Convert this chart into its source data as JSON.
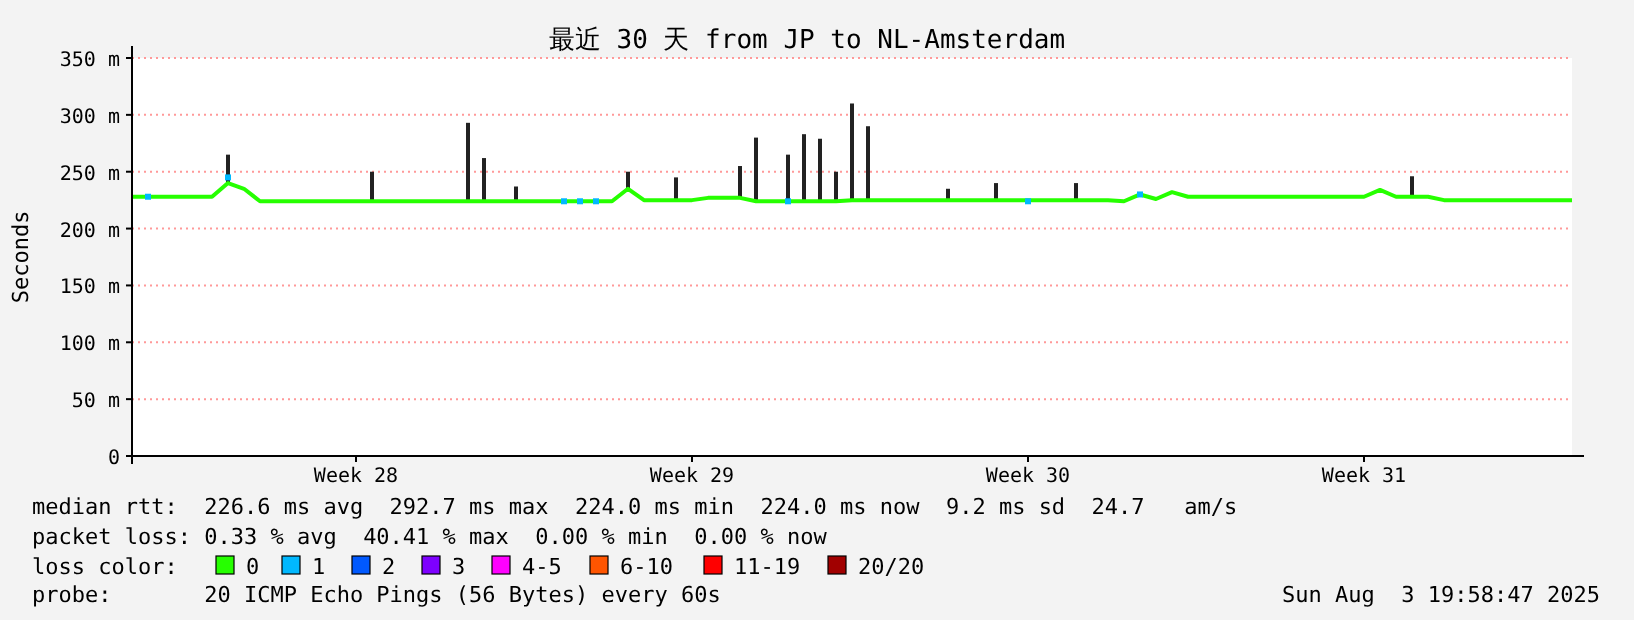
{
  "chart_data": {
    "type": "line",
    "title": "最近 30 天 from JP to NL-Amsterdam",
    "ylabel": "Seconds",
    "legend_title": "loss color:",
    "legend": "bottom",
    "grid": "y",
    "categories": [
      null,
      null,
      null,
      null,
      null,
      null,
      null,
      null,
      null,
      null,
      null,
      null,
      null,
      null,
      "Week 28",
      null,
      null,
      null,
      null,
      null,
      null,
      null,
      null,
      null,
      null,
      null,
      null,
      null,
      null,
      null,
      null,
      null,
      null,
      null,
      null,
      "Week 29",
      null,
      null,
      null,
      null,
      null,
      null,
      null,
      null,
      null,
      null,
      null,
      null,
      null,
      null,
      null,
      null,
      null,
      null,
      null,
      null,
      "Week 30",
      null,
      null,
      null,
      null,
      null,
      null,
      null,
      null,
      null,
      null,
      null,
      null,
      null,
      null,
      null,
      null,
      null,
      null,
      null,
      null,
      "Week 31",
      null,
      null,
      null,
      null,
      null,
      null,
      null,
      null,
      null,
      null,
      null,
      null,
      null
    ],
    "ylim": [
      0,
      350
    ],
    "yticks": [
      {
        "value": 0,
        "label": "0"
      },
      {
        "value": 50,
        "label": "50 m"
      },
      {
        "value": 100,
        "label": "100 m"
      },
      {
        "value": 150,
        "label": "150 m"
      },
      {
        "value": 200,
        "label": "200 m"
      },
      {
        "value": 250,
        "label": "250 m"
      },
      {
        "value": 300,
        "label": "300 m"
      },
      {
        "value": 350,
        "label": "350 m"
      }
    ],
    "series": [
      {
        "type": "bar",
        "color": "#222222",
        "base": [
          null,
          null,
          null,
          null,
          null,
          null,
          240,
          null,
          null,
          null,
          null,
          null,
          null,
          null,
          null,
          224,
          null,
          null,
          null,
          null,
          null,
          224,
          224,
          null,
          224,
          null,
          null,
          null,
          null,
          null,
          null,
          235,
          null,
          null,
          225,
          null,
          null,
          null,
          227,
          224,
          null,
          224,
          224,
          224,
          224,
          225,
          225,
          null,
          null,
          null,
          null,
          225,
          null,
          null,
          225,
          null,
          null,
          null,
          null,
          225,
          null,
          null,
          null,
          null,
          null,
          null,
          null,
          null,
          null,
          null,
          null,
          null,
          null,
          null,
          null,
          null,
          null,
          null,
          null,
          null,
          228,
          null,
          null,
          null,
          null,
          null,
          null,
          null,
          null,
          null,
          null
        ],
        "values": [
          null,
          null,
          null,
          null,
          null,
          null,
          25,
          null,
          null,
          null,
          null,
          null,
          null,
          null,
          null,
          26,
          null,
          null,
          null,
          null,
          null,
          69,
          38,
          null,
          13,
          null,
          null,
          null,
          null,
          null,
          null,
          15,
          null,
          null,
          20,
          null,
          null,
          null,
          28,
          56,
          null,
          41,
          59,
          55,
          26,
          85,
          65,
          null,
          null,
          null,
          null,
          10,
          null,
          null,
          15,
          null,
          null,
          null,
          null,
          15,
          null,
          null,
          null,
          null,
          null,
          null,
          null,
          null,
          null,
          null,
          null,
          null,
          null,
          null,
          null,
          null,
          null,
          null,
          null,
          null,
          18,
          null,
          null,
          null,
          null,
          null,
          null,
          null,
          null,
          null,
          null
        ]
      },
      {
        "name": "0",
        "color": "#26ff00",
        "values": [
          228,
          228,
          228,
          228,
          228,
          228,
          240,
          235,
          224,
          224,
          224,
          224,
          224,
          224,
          224,
          224,
          224,
          224,
          224,
          224,
          224,
          224,
          224,
          224,
          224,
          224,
          224,
          224,
          224,
          224,
          224,
          235,
          225,
          225,
          225,
          225,
          227,
          227,
          227,
          224,
          224,
          224,
          224,
          224,
          224,
          225,
          225,
          225,
          225,
          225,
          225,
          225,
          225,
          225,
          225,
          225,
          225,
          225,
          225,
          225,
          225,
          225,
          224,
          230,
          226,
          232,
          228,
          228,
          228,
          228,
          228,
          228,
          228,
          228,
          228,
          228,
          228,
          228,
          234,
          228,
          228,
          228,
          225,
          225,
          225,
          225,
          225,
          225,
          225,
          225,
          225
        ]
      },
      {
        "name": "1",
        "type": "scatter",
        "marker": "square",
        "color": "#00b8ff",
        "values": [
          null,
          228,
          null,
          null,
          null,
          null,
          245,
          null,
          null,
          null,
          null,
          null,
          null,
          null,
          null,
          null,
          null,
          null,
          null,
          null,
          null,
          null,
          null,
          null,
          null,
          null,
          null,
          224,
          224,
          224,
          null,
          null,
          null,
          null,
          null,
          null,
          null,
          null,
          null,
          null,
          null,
          224,
          null,
          null,
          null,
          null,
          null,
          null,
          null,
          null,
          null,
          null,
          null,
          null,
          null,
          null,
          224,
          null,
          null,
          null,
          null,
          null,
          null,
          230,
          null,
          null,
          null,
          null,
          null,
          null,
          null,
          null,
          null,
          null,
          null,
          null,
          null,
          null,
          null,
          null,
          null,
          null,
          null,
          null,
          null,
          null,
          null,
          null,
          null,
          null,
          null
        ]
      },
      {
        "name": "2",
        "type": "scatter",
        "marker": "square",
        "color": "#0059ff",
        "values": [
          null,
          null,
          null,
          null,
          null,
          null,
          null,
          null,
          null,
          null,
          null,
          null,
          null,
          null,
          null,
          null,
          null,
          null,
          null,
          null,
          null,
          null,
          null,
          null,
          null,
          null,
          null,
          null,
          null,
          null,
          null,
          null,
          null,
          null,
          null,
          null,
          null,
          null,
          null,
          null,
          null,
          null,
          null,
          null,
          null,
          null,
          null,
          null,
          null,
          null,
          null,
          null,
          null,
          null,
          null,
          null,
          null,
          null,
          null,
          null,
          null,
          null,
          null,
          null,
          null,
          null,
          null,
          null,
          null,
          null,
          null,
          null,
          null,
          null,
          null,
          null,
          null,
          null,
          null,
          null,
          null,
          null,
          null,
          null,
          null,
          null,
          null,
          null,
          null,
          null,
          null
        ]
      },
      {
        "name": "3",
        "type": "scatter",
        "marker": "square",
        "color": "#7e00ff",
        "values": [
          null,
          null,
          null,
          null,
          null,
          null,
          null,
          null,
          null,
          null,
          null,
          null,
          null,
          null,
          null,
          null,
          null,
          null,
          null,
          null,
          null,
          null,
          null,
          null,
          null,
          null,
          null,
          null,
          null,
          null,
          null,
          null,
          null,
          null,
          null,
          null,
          null,
          null,
          null,
          null,
          null,
          null,
          null,
          null,
          null,
          null,
          null,
          null,
          null,
          null,
          null,
          null,
          null,
          null,
          null,
          null,
          null,
          null,
          null,
          null,
          null,
          null,
          null,
          null,
          null,
          null,
          null,
          null,
          null,
          null,
          null,
          null,
          null,
          null,
          null,
          null,
          null,
          null,
          null,
          null,
          null,
          null,
          null,
          null,
          null,
          null,
          null,
          null,
          null,
          null,
          null
        ]
      },
      {
        "name": "4-5",
        "type": "scatter",
        "marker": "square",
        "color": "#ff00ff",
        "values": [
          null,
          null,
          null,
          null,
          null,
          null,
          null,
          null,
          null,
          null,
          null,
          null,
          null,
          null,
          null,
          null,
          null,
          null,
          null,
          null,
          null,
          null,
          null,
          null,
          null,
          null,
          null,
          null,
          null,
          null,
          null,
          null,
          null,
          null,
          null,
          null,
          null,
          null,
          null,
          null,
          null,
          null,
          null,
          null,
          null,
          null,
          null,
          null,
          null,
          null,
          null,
          null,
          null,
          null,
          null,
          null,
          null,
          null,
          null,
          null,
          null,
          null,
          null,
          null,
          null,
          null,
          null,
          null,
          null,
          null,
          null,
          null,
          null,
          null,
          null,
          null,
          null,
          null,
          null,
          null,
          null,
          null,
          null,
          null,
          null,
          null,
          null,
          null,
          null,
          null,
          null
        ]
      },
      {
        "name": "6-10",
        "type": "scatter",
        "marker": "square",
        "color": "#ff5500",
        "values": [
          null,
          null,
          null,
          null,
          null,
          null,
          null,
          null,
          null,
          null,
          null,
          null,
          null,
          null,
          null,
          null,
          null,
          null,
          null,
          null,
          null,
          null,
          null,
          null,
          null,
          null,
          null,
          null,
          null,
          null,
          null,
          null,
          null,
          null,
          null,
          null,
          null,
          null,
          null,
          null,
          null,
          null,
          null,
          null,
          null,
          null,
          null,
          null,
          null,
          null,
          null,
          null,
          null,
          null,
          null,
          null,
          null,
          null,
          null,
          null,
          null,
          null,
          null,
          null,
          null,
          null,
          null,
          null,
          null,
          null,
          null,
          null,
          null,
          null,
          null,
          null,
          null,
          null,
          null,
          null,
          null,
          null,
          null,
          null,
          null,
          null,
          null,
          null,
          null,
          null,
          null
        ]
      },
      {
        "name": "11-19",
        "type": "scatter",
        "marker": "square",
        "color": "#ff0000",
        "values": [
          null,
          null,
          null,
          null,
          null,
          null,
          null,
          null,
          null,
          null,
          null,
          null,
          null,
          null,
          null,
          null,
          null,
          null,
          null,
          null,
          null,
          null,
          null,
          null,
          null,
          null,
          null,
          null,
          null,
          null,
          null,
          null,
          null,
          null,
          null,
          null,
          null,
          null,
          null,
          null,
          null,
          null,
          null,
          null,
          null,
          null,
          null,
          null,
          null,
          null,
          null,
          null,
          null,
          null,
          null,
          null,
          null,
          null,
          null,
          null,
          null,
          null,
          null,
          null,
          null,
          null,
          null,
          null,
          null,
          null,
          null,
          null,
          null,
          null,
          null,
          null,
          null,
          null,
          null,
          null,
          null,
          null,
          null,
          null,
          null,
          null,
          null,
          null,
          null,
          null,
          null
        ]
      },
      {
        "name": "20/20",
        "type": "scatter",
        "marker": "square",
        "color": "#a10000",
        "values": [
          null,
          null,
          null,
          null,
          null,
          null,
          null,
          null,
          null,
          null,
          null,
          null,
          null,
          null,
          null,
          null,
          null,
          null,
          null,
          null,
          null,
          null,
          null,
          null,
          null,
          null,
          null,
          null,
          null,
          null,
          null,
          null,
          null,
          null,
          null,
          null,
          null,
          null,
          null,
          null,
          null,
          null,
          null,
          null,
          null,
          null,
          null,
          null,
          null,
          null,
          null,
          null,
          null,
          null,
          null,
          null,
          null,
          null,
          null,
          null,
          null,
          null,
          null,
          null,
          null,
          null,
          null,
          null,
          null,
          null,
          null,
          null,
          null,
          null,
          null,
          null,
          null,
          null,
          null,
          null,
          null,
          null,
          null,
          null,
          null,
          null,
          null,
          null,
          null,
          null,
          null
        ]
      }
    ],
    "annotations": [
      "median rtt:  226.6 ms avg  292.7 ms max  224.0 ms min  224.0 ms now  9.2 ms sd  24.7   am/s",
      "packet loss: 0.33 % avg  40.41 % max  0.00 % min  0.00 % now",
      "probe:       20 ICMP Echo Pings (56 Bytes) every 60s",
      "Sun Aug  3 19:58:47 2025"
    ]
  }
}
